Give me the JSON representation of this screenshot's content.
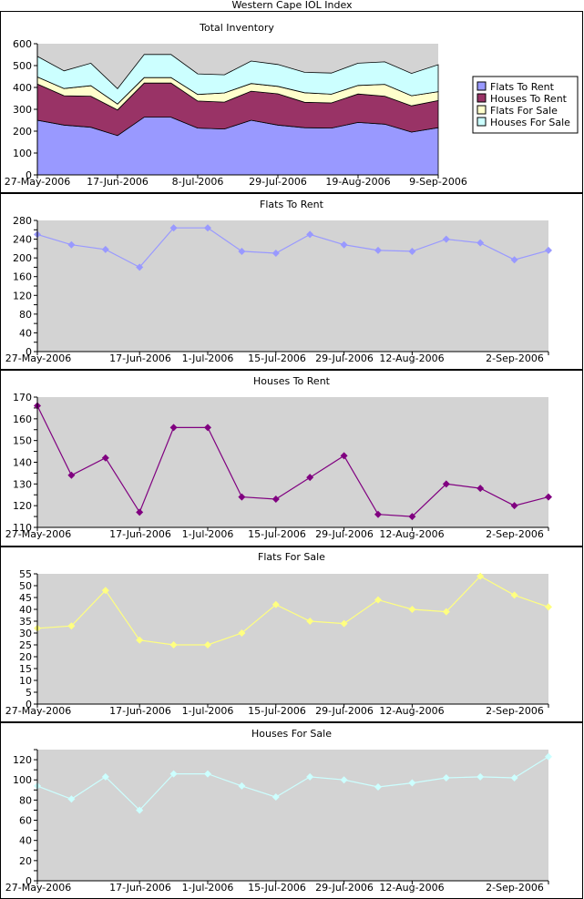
{
  "page": {
    "title": "Western Cape IOL Index"
  },
  "chart_data": [
    {
      "type": "area",
      "title": "Total Inventory",
      "stacked": true,
      "xlabel": "",
      "ylabel": "",
      "x_tick_labels": [
        "27-May-2006",
        "17-Jun-2006",
        "8-Jul-2006",
        "29-Jul-2006",
        "19-Aug-2006",
        "9-Sep-2006"
      ],
      "ylim": [
        0,
        600
      ],
      "y_ticks": [
        0,
        100,
        200,
        300,
        400,
        500,
        600
      ],
      "legend_position": "right",
      "grid": false,
      "series": [
        {
          "name": "Flats To Rent",
          "color": "#9999ff",
          "values": [
            250,
            228,
            218,
            180,
            264,
            264,
            214,
            210,
            250,
            228,
            216,
            214,
            240,
            232,
            196,
            216
          ]
        },
        {
          "name": "Houses To Rent",
          "color": "#993366",
          "values": [
            166,
            134,
            142,
            117,
            156,
            156,
            124,
            123,
            133,
            143,
            116,
            115,
            130,
            128,
            120,
            124
          ]
        },
        {
          "name": "Flats For Sale",
          "color": "#ffffcc",
          "values": [
            32,
            33,
            48,
            27,
            25,
            25,
            30,
            42,
            35,
            34,
            44,
            40,
            39,
            54,
            46,
            41
          ]
        },
        {
          "name": "Houses For Sale",
          "color": "#ccffff",
          "values": [
            94,
            81,
            103,
            70,
            106,
            106,
            94,
            83,
            103,
            100,
            93,
            97,
            102,
            103,
            102,
            123
          ]
        }
      ]
    },
    {
      "type": "line",
      "title": "Flats To Rent",
      "color": "#9999ff",
      "x_tick_labels": [
        "27-May-2006",
        "17-Jun-2006",
        "1-Jul-2006",
        "15-Jul-2006",
        "29-Jul-2006",
        "12-Aug-2006",
        "2-Sep-2006"
      ],
      "ylim": [
        0,
        280
      ],
      "y_ticks": [
        0,
        20,
        40,
        60,
        80,
        100,
        120,
        140,
        160,
        180,
        200,
        220,
        240,
        260,
        280
      ],
      "y_tick_labels": [
        "0",
        "40",
        "80",
        "120",
        "160",
        "200",
        "240",
        "280"
      ],
      "values": [
        250,
        228,
        218,
        180,
        264,
        264,
        214,
        210,
        250,
        228,
        216,
        214,
        240,
        232,
        196,
        216
      ]
    },
    {
      "type": "line",
      "title": "Houses To Rent",
      "color": "#800080",
      "x_tick_labels": [
        "27-May-2006",
        "17-Jun-2006",
        "1-Jul-2006",
        "15-Jul-2006",
        "29-Jul-2006",
        "12-Aug-2006",
        "2-Sep-2006"
      ],
      "ylim": [
        110,
        170
      ],
      "y_ticks": [
        110,
        115,
        120,
        125,
        130,
        135,
        140,
        145,
        150,
        155,
        160,
        165,
        170
      ],
      "y_tick_labels": [
        "110",
        "120",
        "130",
        "140",
        "150",
        "160",
        "170"
      ],
      "values": [
        166,
        134,
        142,
        117,
        156,
        156,
        124,
        123,
        133,
        143,
        116,
        115,
        130,
        128,
        120,
        124
      ]
    },
    {
      "type": "line",
      "title": "Flats For Sale",
      "color": "#ffff80",
      "x_tick_labels": [
        "27-May-2006",
        "17-Jun-2006",
        "1-Jul-2006",
        "15-Jul-2006",
        "29-Jul-2006",
        "12-Aug-2006",
        "2-Sep-2006"
      ],
      "ylim": [
        0,
        55
      ],
      "y_ticks": [
        0,
        5,
        10,
        15,
        20,
        25,
        30,
        35,
        40,
        45,
        50,
        55
      ],
      "y_tick_labels": [
        "0",
        "5",
        "10",
        "15",
        "20",
        "25",
        "30",
        "35",
        "40",
        "45",
        "50",
        "55"
      ],
      "values": [
        32,
        33,
        48,
        27,
        25,
        25,
        30,
        42,
        35,
        34,
        44,
        40,
        39,
        54,
        46,
        41
      ]
    },
    {
      "type": "line",
      "title": "Houses For Sale",
      "color": "#ccffff",
      "x_tick_labels": [
        "27-May-2006",
        "17-Jun-2006",
        "1-Jul-2006",
        "15-Jul-2006",
        "29-Jul-2006",
        "12-Aug-2006",
        "2-Sep-2006"
      ],
      "ylim": [
        0,
        130
      ],
      "y_ticks": [
        0,
        10,
        20,
        30,
        40,
        50,
        60,
        70,
        80,
        90,
        100,
        110,
        120,
        130
      ],
      "y_tick_labels": [
        "0",
        "20",
        "40",
        "60",
        "80",
        "100",
        "120"
      ],
      "values": [
        94,
        81,
        103,
        70,
        106,
        106,
        94,
        83,
        103,
        100,
        93,
        97,
        102,
        103,
        102,
        123
      ]
    }
  ]
}
